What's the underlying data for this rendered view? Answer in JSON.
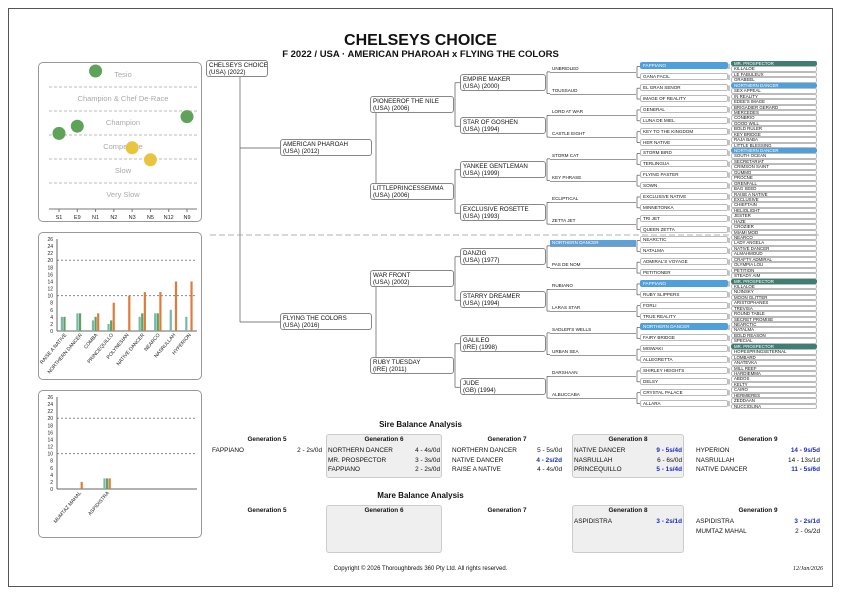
{
  "header": {
    "title": "CHELSEYS CHOICE",
    "subtitle": "F 2022 / USA · AMERICAN PHAROAH x FLYING THE COLORS"
  },
  "colors": {
    "green": "#5fa25a",
    "yellow": "#e8c43f",
    "orange": "#e07b3c",
    "teal": "#76b8b0",
    "highlight": "#5ea1d8",
    "dark_green": "#3e7f72"
  },
  "rating_chart": {
    "bands": [
      "Tesio",
      "Champion & Chef De-Race",
      "Champion",
      "Competitive",
      "Slow",
      "Very Slow"
    ],
    "x_labels": [
      "S1",
      "E9",
      "N1",
      "N2",
      "N3",
      "N5",
      "N12",
      "N9"
    ],
    "points": [
      {
        "x": "N1",
        "band": 0.0,
        "color": "green"
      },
      {
        "x": "S1",
        "band": 2.6,
        "color": "green"
      },
      {
        "x": "E9",
        "band": 2.3,
        "color": "green"
      },
      {
        "x": "N9",
        "band": 1.9,
        "color": "green"
      },
      {
        "x": "N3",
        "band": 3.2,
        "color": "yellow"
      },
      {
        "x": "N5",
        "band": 3.7,
        "color": "yellow"
      }
    ]
  },
  "chart_data": [
    {
      "type": "bar",
      "categories": [
        "RAISE A NATIVE",
        "NORTHERN DANCER",
        "COMBA",
        "PRINCEQUILLO",
        "POLYNESIAN",
        "NATIVE DANCER",
        "NEARCO",
        "NASRULLAH",
        "HYPERION"
      ],
      "series": [
        {
          "name": "s1",
          "color": "teal",
          "values": [
            4,
            5,
            3,
            2,
            0,
            4,
            5,
            6,
            4
          ]
        },
        {
          "name": "s2",
          "color": "green",
          "values": [
            4,
            5,
            4,
            3,
            0,
            5,
            5,
            0,
            0
          ]
        },
        {
          "name": "s3",
          "color": "orange",
          "values": [
            0,
            0,
            5,
            8,
            10,
            11,
            11,
            14,
            14
          ]
        }
      ],
      "y_ticks": [
        0,
        2,
        4,
        6,
        8,
        10,
        12,
        14,
        16,
        18,
        20,
        22,
        24,
        26
      ],
      "ylim": [
        0,
        26
      ]
    },
    {
      "type": "bar",
      "categories": [
        "MUMTAZ MAHAL",
        "ASPIDISTRA"
      ],
      "series": [
        {
          "name": "s1",
          "color": "teal",
          "values": [
            0,
            3
          ]
        },
        {
          "name": "s2",
          "color": "green",
          "values": [
            0,
            3
          ]
        },
        {
          "name": "s3",
          "color": "orange",
          "values": [
            2,
            3
          ]
        }
      ],
      "y_ticks": [
        0,
        2,
        4,
        6,
        8,
        10,
        12,
        14,
        16,
        18,
        20,
        22,
        24,
        26
      ],
      "ylim": [
        0,
        26
      ]
    }
  ],
  "pedigree": {
    "subject": {
      "name": "CHELSEYS CHOICE",
      "info": "(USA) (2022)"
    },
    "sire": {
      "name": "AMERICAN PHAROAH",
      "info": "(USA) (2012)"
    },
    "dam": {
      "name": "FLYING THE COLORS",
      "info": "(USA) (2016)"
    },
    "g2": [
      {
        "name": "PIONEEROF THE NILE",
        "info": "(USA) (2006)"
      },
      {
        "name": "LITTLEPRINCESSEMMA",
        "info": "(USA) (2006)"
      },
      {
        "name": "WAR FRONT",
        "info": "(USA) (2002)"
      },
      {
        "name": "RUBY TUESDAY",
        "info": "(IRE) (2011)"
      }
    ],
    "g3": [
      {
        "name": "EMPIRE MAKER",
        "info": "(USA) (2000)"
      },
      {
        "name": "STAR OF GOSHEN",
        "info": "(USA) (1994)"
      },
      {
        "name": "YANKEE GENTLEMAN",
        "info": "(USA) (1999)"
      },
      {
        "name": "EXCLUSIVE ROSETTE",
        "info": "(USA) (1993)"
      },
      {
        "name": "DANZIG",
        "info": "(USA) (1977)"
      },
      {
        "name": "STARRY DREAMER",
        "info": "(USA) (1994)"
      },
      {
        "name": "GALILEO",
        "info": "(IRE) (1998)"
      },
      {
        "name": "JUDE",
        "info": "(GB) (1994)"
      }
    ],
    "g4": [
      "UNBRIDLED",
      "TOUSSAUD",
      "LORD AT WAR",
      "CASTLE EIGHT",
      "STORM CAT",
      "KEY PHRASE",
      "ECLIPTICAL",
      "ZETTA JET",
      "NORTHERN DANCER",
      "PAS DE NOM",
      "RUBIANO",
      "LARAS STAR",
      "SADLER'S WELLS",
      "URBAN SEA",
      "DARSHAAN",
      "ALBUCCABA"
    ],
    "g5": [
      "FAPPIANO",
      "GANA FACIL",
      "EL GRAN SENOR",
      "IMAGE OF REALITY",
      "GENERAL",
      "LUNA DE MIEL",
      "KEY TO THE KINGDOM",
      "HER NATIVE",
      "STORM BIRD",
      "TERLINGUA",
      "FLYING PASTER",
      "SOWN",
      "EXCLUSIVE NATIVE",
      "MINNETONKA",
      "TRI JET",
      "QUEEN ZETTA",
      "NEARCTIC",
      "NATALMA",
      "ADMIRAL'S VOYAGE",
      "PETITIONER",
      "FAPPIANO",
      "RUBY SLIPPERS",
      "FORLI",
      "TRUE REALITY",
      "NORTHERN DANCER",
      "FAIRY BRIDGE",
      "MISWAKI",
      "ALLEGRETTA",
      "SHIRLEY HEIGHTS",
      "DELSY",
      "CRYSTAL PALACE",
      "ALLARA"
    ],
    "g6": [
      "MR. PROSPECTOR",
      "KILLALOE",
      "LE FABULEUX",
      "GRABEEL",
      "NORTHERN DANCER",
      "SEX APPEAL",
      "IN REALITY",
      "EDEE'S IMAGE",
      "BRIGADIER GERARD",
      "MERCEDES",
      "CONBRIO",
      "GOOD WILL",
      "BOLD RULER",
      "KEY BRIDGE",
      "RAJA BABA",
      "LITTLE BLESSING",
      "NORTHERN DANCER",
      "SOUTH OCEAN",
      "SECRETARIAT",
      "CRIMSON SAINT",
      "GUMMO",
      "PROCNE",
      "GRENFALL",
      "BAG SEED",
      "RAISE A NATIVE",
      "EXCLUSIVE",
      "CHIEFTAIN",
      "HELIOLIGHT",
      "JESTER",
      "HAZE",
      "CROZIER",
      "MIAMI MOD",
      "NEARCO",
      "LADY ANGELA",
      "NATIVE DANCER",
      "ALMAHMOUD",
      "CRAFTY ADMIRAL",
      "OLYMPIA LOU",
      "PETITION",
      "STEADY AIM",
      "MR. PROSPECTOR",
      "KILLALOE",
      "NIJINSKY",
      "MOON GLITTER",
      "ARISTOPHANES",
      "TREVISA",
      "ROUND TABLE",
      "SECRET PROMISE",
      "NEARCTIC",
      "NATALMA",
      "BOLD REASON",
      "SPECIAL",
      "MR. PROSPECTOR",
      "HOPESPRINGSETERNAL",
      "LOMBARD",
      "ANATEVKA",
      "MILL REEF",
      "HARDIEMMA",
      "ABDOS",
      "KELTY",
      "CAIRO",
      "HERMIERES",
      "ZEDDAAN",
      "NUCCIOLINA"
    ]
  },
  "sire_balance": {
    "title": "Sire Balance Analysis",
    "columns": [
      {
        "header": "Generation 5",
        "rows": [
          {
            "name": "FAPPIANO",
            "val": "2 - 2s/0d",
            "hl": false
          }
        ]
      },
      {
        "header": "Generation 6",
        "rows": [
          {
            "name": "NORTHERN DANCER",
            "val": "4 - 4s/0d",
            "hl": false
          },
          {
            "name": "MR. PROSPECTOR",
            "val": "3 - 3s/0d",
            "hl": false
          },
          {
            "name": "FAPPIANO",
            "val": "2 - 2s/0d",
            "hl": false
          }
        ]
      },
      {
        "header": "Generation 7",
        "rows": [
          {
            "name": "NORTHERN DANCER",
            "val": "5 - 5s/0d",
            "hl": false
          },
          {
            "name": "NATIVE DANCER",
            "val": "4 - 2s/2d",
            "hl": true
          },
          {
            "name": "RAISE A NATIVE",
            "val": "4 - 4s/0d",
            "hl": false
          }
        ]
      },
      {
        "header": "Generation 8",
        "rows": [
          {
            "name": "NATIVE DANCER",
            "val": "9 - 5s/4d",
            "hl": true
          },
          {
            "name": "NASRULLAH",
            "val": "6 - 6s/0d",
            "hl": false
          },
          {
            "name": "PRINCEQUILLO",
            "val": "5 - 1s/4d",
            "hl": true
          }
        ]
      },
      {
        "header": "Generation 9",
        "rows": [
          {
            "name": "HYPERION",
            "val": "14 - 9s/5d",
            "hl": true
          },
          {
            "name": "NASRULLAH",
            "val": "14 - 13s/1d",
            "hl": false
          },
          {
            "name": "NATIVE DANCER",
            "val": "11 - 5s/6d",
            "hl": true
          }
        ]
      }
    ]
  },
  "mare_balance": {
    "title": "Mare Balance Analysis",
    "columns": [
      {
        "header": "Generation 5",
        "rows": []
      },
      {
        "header": "Generation 6",
        "rows": []
      },
      {
        "header": "Generation 7",
        "rows": []
      },
      {
        "header": "Generation 8",
        "rows": [
          {
            "name": "ASPIDISTRA",
            "val": "3 - 2s/1d",
            "hl": true
          }
        ]
      },
      {
        "header": "Generation 9",
        "rows": [
          {
            "name": "ASPIDISTRA",
            "val": "3 - 2s/1d",
            "hl": true
          },
          {
            "name": "MUMTAZ MAHAL",
            "val": "2 - 0s/2d",
            "hl": false
          }
        ]
      }
    ]
  },
  "footer": {
    "copyright": "Copyright © 2026 Thoroughbreds 360 Pty Ltd. All rights reserved.",
    "date": "12/Jan/2026"
  }
}
